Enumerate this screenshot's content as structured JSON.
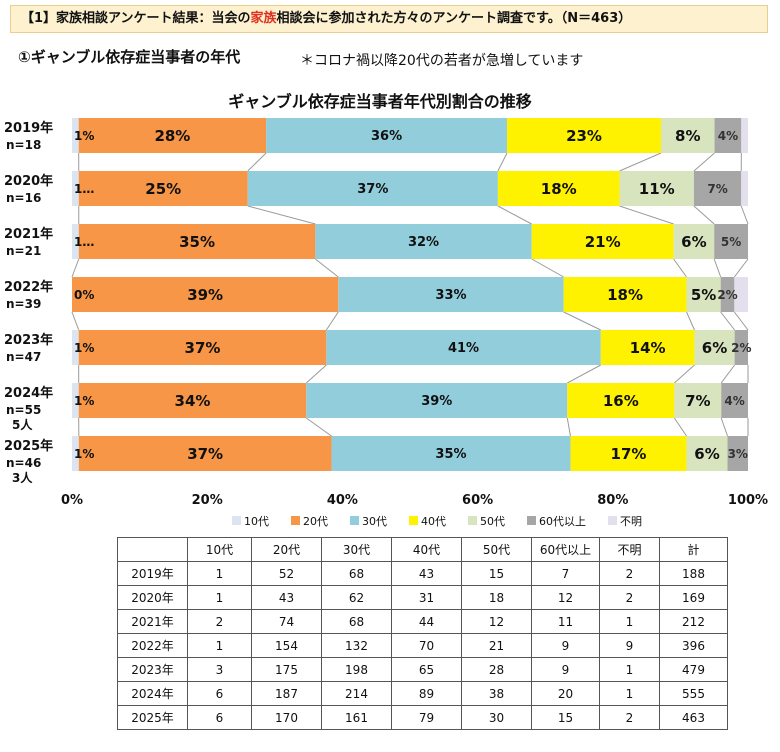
{
  "banner": {
    "prefix": "【1】家族相談アンケート結果：当会の",
    "highlight": "家族",
    "suffix": "相談会に参加された方々のアンケート調査です。（N＝463）"
  },
  "subtitle": "①ギャンブル依存症当事者の年代",
  "note": "＊コロナ禍以降20代の若者が急増しています",
  "colors": {
    "10代": "#dbe5f1",
    "20代": "#f79646",
    "30代": "#92cddc",
    "40代": "#fff200",
    "50代": "#d7e4bd",
    "60代以上": "#a6a6a6",
    "不明": "#e4dfec"
  },
  "chart_data": {
    "type": "bar",
    "orientation": "horizontal",
    "stacked": true,
    "percent": true,
    "title": "ギャンブル依存症当事者年代別割合の推移",
    "categories": [
      "2019年",
      "2020年",
      "2021年",
      "2022年",
      "2023年",
      "2024年",
      "2025年"
    ],
    "category_sublabels": [
      "n=18",
      "n=16",
      "n=21",
      "n=39",
      "n=47",
      "n=55\n5人",
      "n=46\n3人"
    ],
    "series": [
      {
        "name": "10代",
        "values": [
          1,
          1,
          1,
          0,
          1,
          1,
          1
        ],
        "labels": [
          "1%",
          "1…",
          "1…",
          "0%",
          "1%",
          "1%",
          "1%"
        ]
      },
      {
        "name": "20代",
        "values": [
          28,
          25,
          35,
          39,
          37,
          34,
          37
        ],
        "labels": [
          "28%",
          "25%",
          "35%",
          "39%",
          "37%",
          "34%",
          "37%"
        ]
      },
      {
        "name": "30代",
        "values": [
          36,
          37,
          32,
          33,
          41,
          39,
          35
        ],
        "labels": [
          "36%",
          "37%",
          "32%",
          "33%",
          "41%",
          "39%",
          "35%"
        ]
      },
      {
        "name": "40代",
        "values": [
          23,
          18,
          21,
          18,
          14,
          16,
          17
        ],
        "labels": [
          "23%",
          "18%",
          "21%",
          "18%",
          "14%",
          "16%",
          "17%"
        ]
      },
      {
        "name": "50代",
        "values": [
          8,
          11,
          6,
          5,
          6,
          7,
          6
        ],
        "labels": [
          "8%",
          "11%",
          "6%",
          "5%",
          "6%",
          "7%",
          "6%"
        ]
      },
      {
        "name": "60代以上",
        "values": [
          4,
          7,
          5,
          2,
          2,
          4,
          3
        ],
        "labels": [
          "4%",
          "7%",
          "5%",
          "2%",
          "2%",
          "4%",
          "3%"
        ]
      },
      {
        "name": "不明",
        "values": [
          1,
          1,
          0,
          2,
          0,
          0,
          0
        ],
        "labels": [
          "",
          "",
          "",
          "",
          "",
          "",
          ""
        ]
      }
    ],
    "xticks": [
      "0%",
      "20%",
      "40%",
      "60%",
      "80%",
      "100%"
    ],
    "xlim": [
      0,
      100
    ],
    "legend": "bottom"
  },
  "table": {
    "headers": [
      "",
      "10代",
      "20代",
      "30代",
      "40代",
      "50代",
      "60代以上",
      "不明",
      "計"
    ],
    "rows": [
      [
        "2019年",
        "1",
        "52",
        "68",
        "43",
        "15",
        "7",
        "2",
        "188"
      ],
      [
        "2020年",
        "1",
        "43",
        "62",
        "31",
        "18",
        "12",
        "2",
        "169"
      ],
      [
        "2021年",
        "2",
        "74",
        "68",
        "44",
        "12",
        "11",
        "1",
        "212"
      ],
      [
        "2022年",
        "1",
        "154",
        "132",
        "70",
        "21",
        "9",
        "9",
        "396"
      ],
      [
        "2023年",
        "3",
        "175",
        "198",
        "65",
        "28",
        "9",
        "1",
        "479"
      ],
      [
        "2024年",
        "6",
        "187",
        "214",
        "89",
        "38",
        "20",
        "1",
        "555"
      ],
      [
        "2025年",
        "6",
        "170",
        "161",
        "79",
        "30",
        "15",
        "2",
        "463"
      ]
    ]
  }
}
